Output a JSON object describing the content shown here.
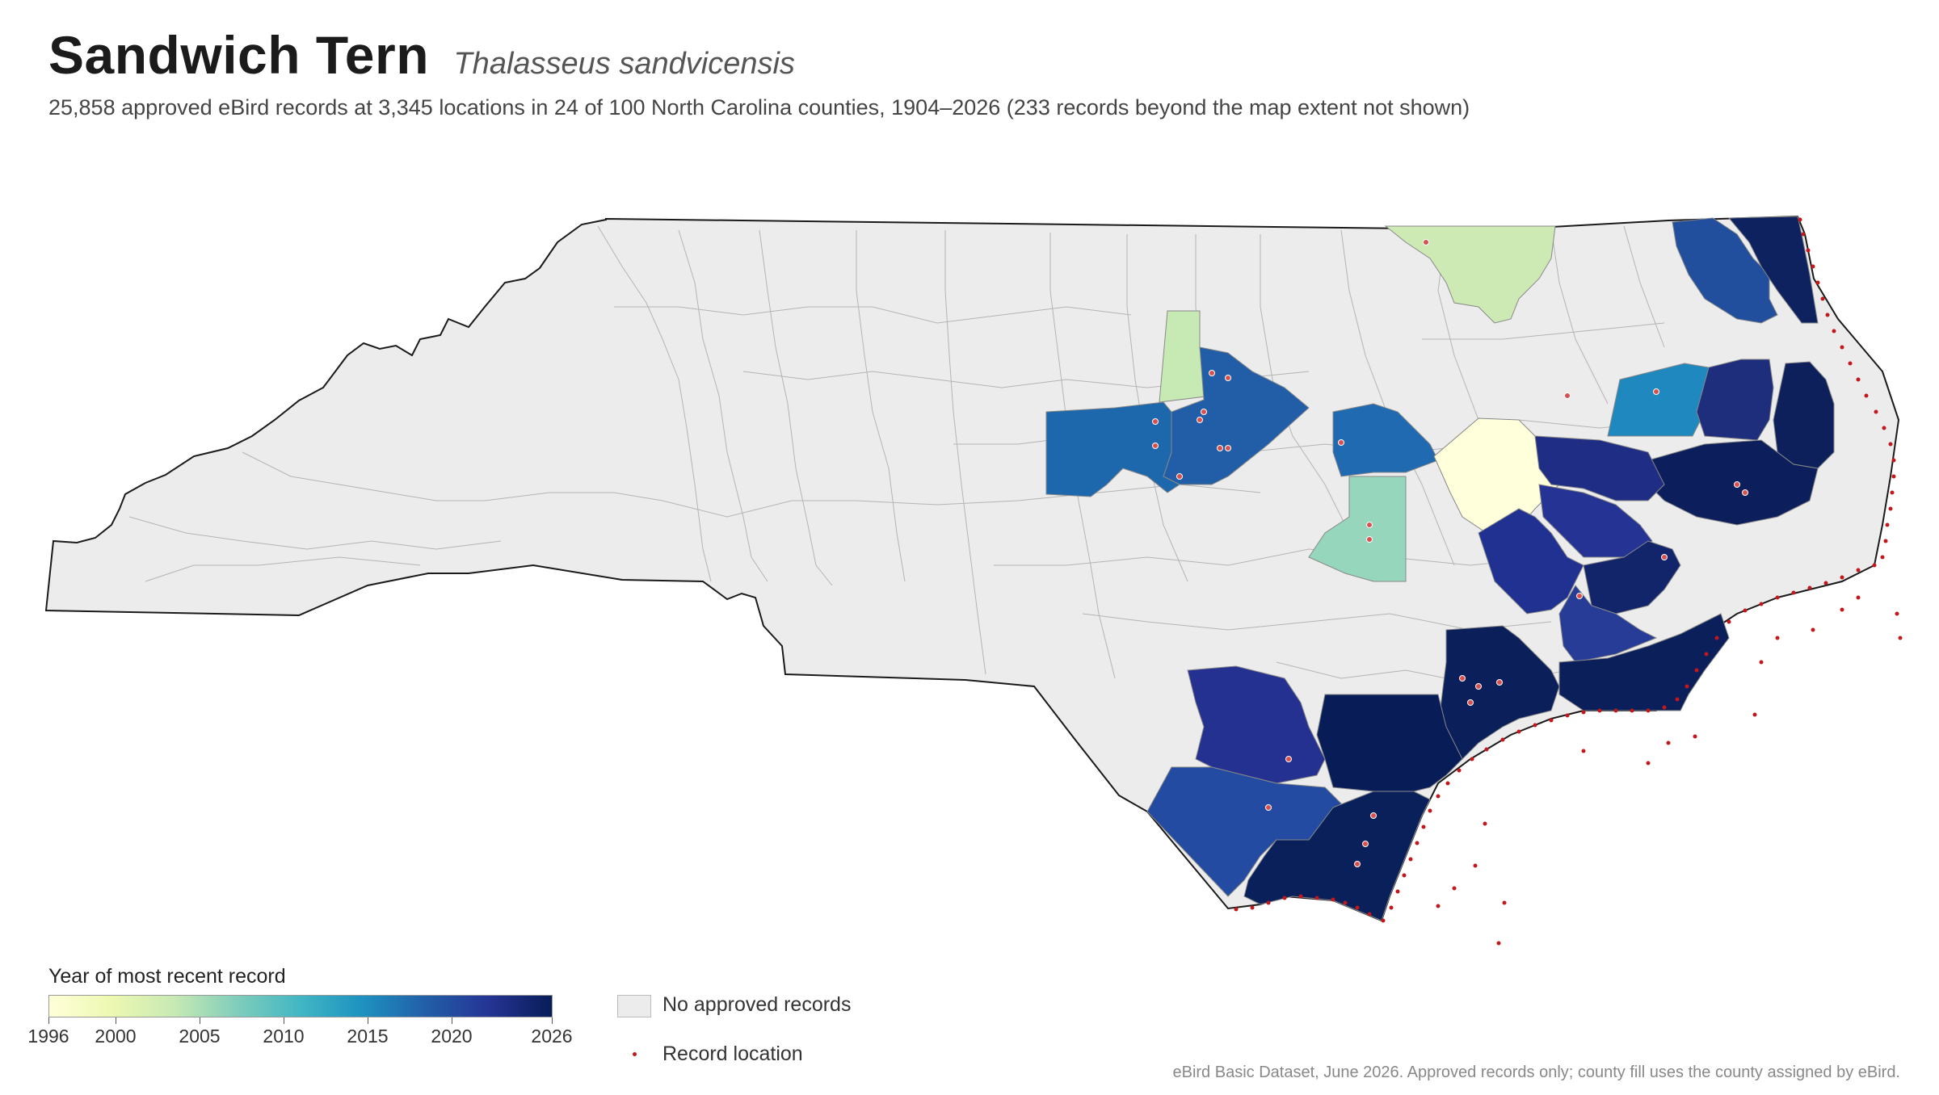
{
  "header": {
    "title": "Sandwich Tern",
    "scientific_name": "Thalasseus sandvicensis",
    "subtitle": "25,858 approved eBird records at 3,345 locations in 24 of 100 North Carolina counties, 1904–2026 (233 records beyond the map extent not shown)"
  },
  "legend": {
    "title": "Year of most recent record",
    "scale_min": 1996,
    "scale_max": 2026,
    "ticks": [
      "1996",
      "2000",
      "2005",
      "2010",
      "2015",
      "2020",
      "2026"
    ],
    "no_records_label": "No approved records",
    "record_location_label": "Record location",
    "colors": {
      "no_records": "#ececec",
      "record_dot": "#c0181c",
      "ramp": [
        "#ffffd9",
        "#edf8b1",
        "#c7e9b4",
        "#7fcdbb",
        "#41b6c4",
        "#1d91c0",
        "#225ea8",
        "#253494",
        "#081d58"
      ]
    }
  },
  "source_note": "eBird Basic Dataset, June 2026. Approved records only; county fill uses the county assigned by eBird.",
  "map": {
    "region": "North Carolina counties",
    "counties_with_records": 24,
    "counties_total": 100
  }
}
